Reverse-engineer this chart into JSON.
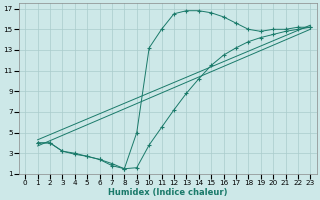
{
  "xlabel": "Humidex (Indice chaleur)",
  "ylabel": "",
  "bg_color": "#cde8e8",
  "grid_color": "#aacccc",
  "line_color": "#1a7a6a",
  "xlim": [
    -0.5,
    23.5
  ],
  "ylim": [
    1,
    17.5
  ],
  "xticks": [
    0,
    1,
    2,
    3,
    4,
    5,
    6,
    7,
    8,
    9,
    10,
    11,
    12,
    13,
    14,
    15,
    16,
    17,
    18,
    19,
    20,
    21,
    22,
    23
  ],
  "yticks": [
    1,
    3,
    5,
    7,
    9,
    11,
    13,
    15,
    17
  ],
  "curve_upper": {
    "x": [
      1,
      2,
      3,
      4,
      5,
      6,
      7,
      8,
      9,
      10,
      11,
      12,
      13,
      14,
      15,
      16,
      17,
      18,
      19,
      20,
      21,
      22,
      23
    ],
    "y": [
      4.0,
      4.0,
      3.2,
      3.0,
      2.7,
      2.4,
      2.0,
      1.5,
      5.0,
      13.2,
      15.0,
      16.5,
      16.8,
      16.8,
      16.6,
      16.2,
      15.6,
      15.0,
      14.8,
      15.0,
      15.0,
      15.2,
      15.2
    ]
  },
  "curve_mid_upper": {
    "x": [
      1,
      23
    ],
    "y": [
      4.0,
      15.2
    ]
  },
  "curve_mid_lower": {
    "x": [
      1,
      23
    ],
    "y": [
      4.0,
      15.2
    ]
  },
  "curve_lower": {
    "x": [
      1,
      2,
      3,
      4,
      5,
      6,
      7,
      8,
      9,
      10,
      11,
      12,
      13,
      14,
      15,
      16,
      17,
      18,
      19,
      20,
      21,
      22,
      23
    ],
    "y": [
      4.0,
      4.0,
      3.2,
      2.9,
      2.7,
      2.4,
      1.8,
      1.5,
      1.6,
      3.8,
      5.5,
      7.2,
      8.8,
      10.2,
      11.5,
      12.5,
      13.2,
      13.8,
      14.2,
      14.5,
      14.8,
      15.0,
      15.2
    ]
  }
}
